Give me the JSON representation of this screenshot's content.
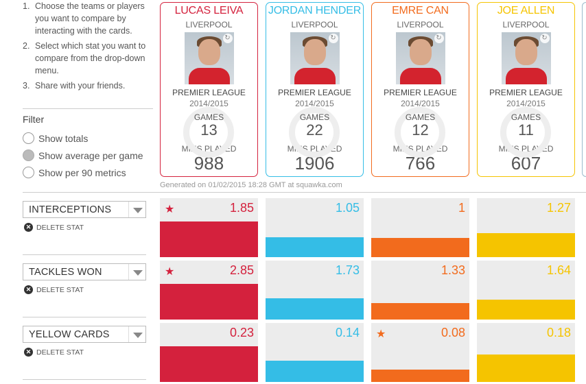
{
  "instructions": [
    {
      "num": "1.",
      "text": "Choose the teams or players you want to compare by interacting with the cards."
    },
    {
      "num": "2.",
      "text": "Select which stat you want to compare from the drop-down menu."
    },
    {
      "num": "3.",
      "text": "Share with your friends."
    }
  ],
  "filter": {
    "title": "Filter",
    "options": [
      {
        "label": "Show totals",
        "checked": false
      },
      {
        "label": "Show average per game",
        "checked": true
      },
      {
        "label": "Show per 90 metrics",
        "checked": false
      }
    ]
  },
  "players": [
    {
      "name": "LUCAS LEIVA",
      "club": "LIVERPOOL",
      "league": "PREMIER LEAGUE",
      "season": "2014/2015",
      "games_label": "GAMES",
      "games": "13",
      "mins_label": "MINS PLAYED",
      "mins": "988",
      "color": "#d4213d"
    },
    {
      "name": "JORDAN HENDER",
      "club": "LIVERPOOL",
      "league": "PREMIER LEAGUE",
      "season": "2014/2015",
      "games_label": "GAMES",
      "games": "22",
      "mins_label": "MINS PLAYED",
      "mins": "1906",
      "color": "#34bde6"
    },
    {
      "name": "EMRE CAN",
      "club": "LIVERPOOL",
      "league": "PREMIER LEAGUE",
      "season": "2014/2015",
      "games_label": "GAMES",
      "games": "12",
      "mins_label": "MINS PLAYED",
      "mins": "766",
      "color": "#f26b1d"
    },
    {
      "name": "JOE ALLEN",
      "club": "LIVERPOOL",
      "league": "PREMIER LEAGUE",
      "season": "2014/2015",
      "games_label": "GAMES",
      "games": "11",
      "mins_label": "MINS PLAYED",
      "mins": "607",
      "color": "#f5c400"
    }
  ],
  "generated": "Generated on 01/02/2015 18:28 GMT at squawka.com",
  "delete_label": "DELETE STAT",
  "stats": [
    {
      "name": "INTERCEPTIONS",
      "values": [
        "1.85",
        "1.05",
        "1",
        "1.27"
      ],
      "best_index": 0,
      "fill": [
        0.6,
        0.34,
        0.32,
        0.41
      ]
    },
    {
      "name": "TACKLES WON",
      "values": [
        "2.85",
        "1.73",
        "1.33",
        "1.64"
      ],
      "best_index": 0,
      "fill": [
        0.6,
        0.36,
        0.28,
        0.34
      ]
    },
    {
      "name": "YELLOW CARDS",
      "values": [
        "0.23",
        "0.14",
        "0.08",
        "0.18"
      ],
      "best_index": 2,
      "fill": [
        0.6,
        0.36,
        0.21,
        0.47
      ]
    }
  ],
  "icons": {
    "star": "star-icon",
    "delete": "close-circle-icon",
    "swap": "swap-icon",
    "dropdown": "chevron-down-icon"
  }
}
